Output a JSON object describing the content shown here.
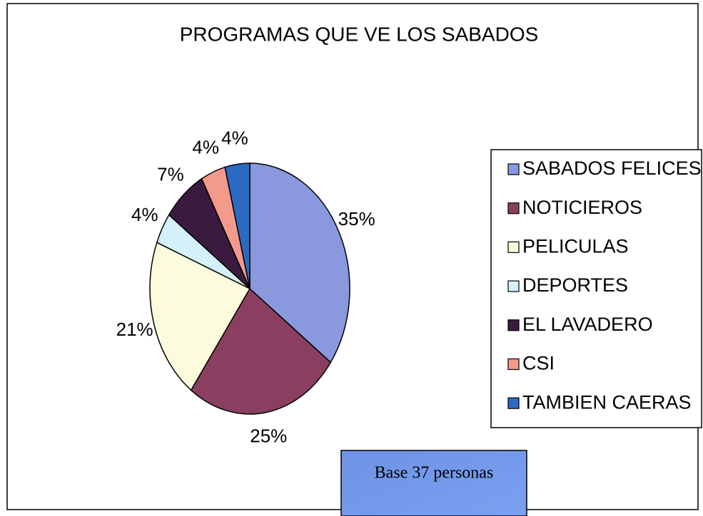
{
  "chart_data": {
    "type": "pie",
    "title": "PROGRAMAS QUE VE LOS SABADOS",
    "categories": [
      "SABADOS FELICES",
      "NOTICIEROS",
      "PELICULAS",
      "DEPORTES",
      "EL LAVADERO",
      "CSI",
      "TAMBIEN CAERAS"
    ],
    "values": [
      35,
      25,
      21,
      4,
      7,
      4,
      4
    ],
    "value_labels": [
      "35%",
      "25%",
      "21%",
      "4%",
      "7%",
      "4%",
      "4%"
    ],
    "colors": [
      "#8a98de",
      "#8a3f60",
      "#fcfbdb",
      "#d4f0fa",
      "#3b1a40",
      "#f39a8c",
      "#2b6ac2"
    ],
    "legend": "right",
    "annotation": "Base 37 personas"
  }
}
